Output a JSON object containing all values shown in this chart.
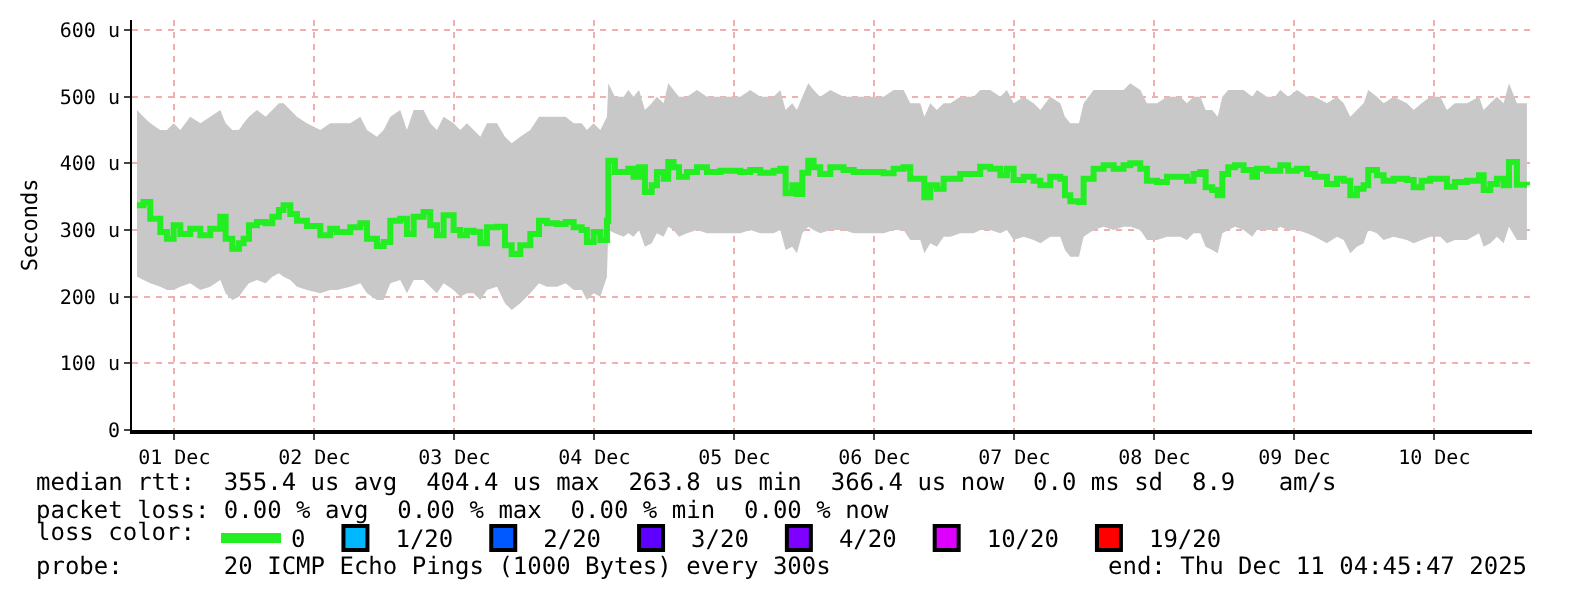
{
  "chart_data": {
    "type": "step",
    "ylabel": "Seconds",
    "xlim": [
      "2025-12-01T04:45",
      "2025-12-11T04:45"
    ],
    "xticks": [
      {
        "value": "2025-12-01T12:00",
        "label": "01 Dec"
      },
      {
        "value": "2025-12-02T12:00",
        "label": "02 Dec"
      },
      {
        "value": "2025-12-03T12:00",
        "label": "03 Dec"
      },
      {
        "value": "2025-12-04T12:00",
        "label": "04 Dec"
      },
      {
        "value": "2025-12-05T12:00",
        "label": "05 Dec"
      },
      {
        "value": "2025-12-06T12:00",
        "label": "06 Dec"
      },
      {
        "value": "2025-12-07T12:00",
        "label": "07 Dec"
      },
      {
        "value": "2025-12-08T12:00",
        "label": "08 Dec"
      },
      {
        "value": "2025-12-09T12:00",
        "label": "09 Dec"
      },
      {
        "value": "2025-12-10T12:00",
        "label": "10 Dec"
      }
    ],
    "ylim": [
      0,
      615
    ],
    "yticks": [
      0,
      {
        "value": 100,
        "label": "100 u"
      },
      {
        "value": 200,
        "label": "200 u"
      },
      {
        "value": 300,
        "label": "300 u"
      },
      {
        "value": 400,
        "label": "400 u"
      },
      {
        "value": 500,
        "label": "500 u"
      },
      {
        "value": 600,
        "label": "600 u"
      }
    ],
    "grid": true,
    "legend": "bottom",
    "legend_title": "loss color:",
    "marker": "none",
    "line_style": "solid",
    "x": [
      "2025-12-01T05:36",
      "2025-12-01T06:44",
      "2025-12-01T07:53",
      "2025-12-01T09:36",
      "2025-12-01T10:44",
      "2025-12-01T11:53",
      "2025-12-01T13:02",
      "2025-12-01T14:44",
      "2025-12-01T16:28",
      "2025-12-01T18:10",
      "2025-12-01T19:53",
      "2025-12-01T20:48",
      "2025-12-01T21:56",
      "2025-12-01T23:05",
      "2025-12-01T23:53",
      "2025-12-02T00:48",
      "2025-12-02T02:10",
      "2025-12-02T03:40",
      "2025-12-02T04:48",
      "2025-12-02T05:56",
      "2025-12-02T06:44",
      "2025-12-02T07:53",
      "2025-12-02T09:02",
      "2025-12-02T10:44",
      "2025-12-02T13:02",
      "2025-12-02T14:44",
      "2025-12-02T15:53",
      "2025-12-02T18:10",
      "2025-12-02T19:53",
      "2025-12-02T21:02",
      "2025-12-02T22:44",
      "2025-12-02T23:53",
      "2025-12-03T01:02",
      "2025-12-03T02:44",
      "2025-12-03T03:53",
      "2025-12-03T05:02",
      "2025-12-03T06:44",
      "2025-12-03T07:53",
      "2025-12-03T09:02",
      "2025-12-03T10:10",
      "2025-12-03T11:53",
      "2025-12-03T13:02",
      "2025-12-03T14:10",
      "2025-12-03T15:19",
      "2025-12-03T16:28",
      "2025-12-03T17:36",
      "2025-12-03T19:19",
      "2025-12-03T20:41",
      "2025-12-03T21:50",
      "2025-12-03T23:19",
      "2025-12-04T01:02",
      "2025-12-04T02:31",
      "2025-12-04T03:53",
      "2025-12-04T05:36",
      "2025-12-04T07:05",
      "2025-12-04T08:28",
      "2025-12-04T09:50",
      "2025-12-04T10:44",
      "2025-12-04T11:53",
      "2025-12-04T13:02",
      "2025-12-04T14:10",
      "2025-12-04T14:24",
      "2025-12-04T15:32",
      "2025-12-04T17:02",
      "2025-12-04T17:50",
      "2025-12-04T18:44",
      "2025-12-04T19:40",
      "2025-12-04T20:41",
      "2025-12-04T21:50",
      "2025-12-04T22:44",
      "2025-12-04T23:53",
      "2025-12-05T00:41",
      "2025-12-05T01:36",
      "2025-12-05T02:31",
      "2025-12-05T03:53",
      "2025-12-05T05:36",
      "2025-12-05T07:19",
      "2025-12-05T09:36",
      "2025-12-05T13:02",
      "2025-12-05T14:44",
      "2025-12-05T16:28",
      "2025-12-05T18:44",
      "2025-12-05T19:53",
      "2025-12-05T20:48",
      "2025-12-05T21:56",
      "2025-12-05T22:44",
      "2025-12-05T23:40",
      "2025-12-06T00:41",
      "2025-12-06T01:36",
      "2025-12-06T02:44",
      "2025-12-06T04:28",
      "2025-12-06T06:44",
      "2025-12-06T08:28",
      "2025-12-06T10:44",
      "2025-12-06T13:36",
      "2025-12-06T15:19",
      "2025-12-06T17:02",
      "2025-12-06T18:10",
      "2025-12-06T19:53",
      "2025-12-06T20:35",
      "2025-12-06T21:36",
      "2025-12-06T22:44",
      "2025-12-06T23:53",
      "2025-12-07T01:02",
      "2025-12-07T02:44",
      "2025-12-07T05:02",
      "2025-12-07T06:10",
      "2025-12-07T07:53",
      "2025-12-07T09:36",
      "2025-12-07T10:44",
      "2025-12-07T11:53",
      "2025-12-07T13:36",
      "2025-12-07T15:19",
      "2025-12-07T16:28",
      "2025-12-07T18:10",
      "2025-12-07T19:53",
      "2025-12-07T20:41",
      "2025-12-07T21:36",
      "2025-12-07T23:05",
      "2025-12-07T23:53",
      "2025-12-08T01:36",
      "2025-12-08T03:19",
      "2025-12-08T05:02",
      "2025-12-08T06:44",
      "2025-12-08T07:53",
      "2025-12-08T09:36",
      "2025-12-08T10:44",
      "2025-12-08T12:28",
      "2025-12-08T14:10",
      "2025-12-08T16:28",
      "2025-12-08T17:36",
      "2025-12-08T18:44",
      "2025-12-08T19:53",
      "2025-12-08T20:48",
      "2025-12-08T21:56",
      "2025-12-08T22:52",
      "2025-12-08T23:40",
      "2025-12-09T00:41",
      "2025-12-09T01:50",
      "2025-12-09T03:19",
      "2025-12-09T04:48",
      "2025-12-09T05:36",
      "2025-12-09T07:19",
      "2025-12-09T08:41",
      "2025-12-09T09:36",
      "2025-12-09T10:58",
      "2025-12-09T12:28",
      "2025-12-09T14:10",
      "2025-12-09T15:32",
      "2025-12-09T17:36",
      "2025-12-09T19:19",
      "2025-12-09T20:28",
      "2025-12-09T21:36",
      "2025-12-09T22:44",
      "2025-12-09T23:53",
      "2025-12-10T00:41",
      "2025-12-10T02:10",
      "2025-12-10T03:19",
      "2025-12-10T05:02",
      "2025-12-10T07:19",
      "2025-12-10T08:28",
      "2025-12-10T09:50",
      "2025-12-10T11:19",
      "2025-12-10T13:02",
      "2025-12-10T14:10",
      "2025-12-10T15:32",
      "2025-12-10T17:36",
      "2025-12-10T19:40",
      "2025-12-10T20:28",
      "2025-12-10T21:36",
      "2025-12-10T22:44",
      "2025-12-10T23:53",
      "2025-12-11T00:48",
      "2025-12-11T02:10",
      "2025-12-11T03:53"
    ],
    "series": [
      {
        "name": "0",
        "color": "#22ee22",
        "values": [
          337,
          342,
          317,
          297,
          287,
          307,
          294,
          302,
          292,
          302,
          320,
          287,
          272,
          280,
          287,
          307,
          312,
          310,
          320,
          330,
          337,
          324,
          314,
          306,
          292,
          302,
          297,
          304,
          310,
          287,
          276,
          282,
          314,
          317,
          294,
          320,
          327,
          307,
          292,
          322,
          300,
          292,
          299,
          297,
          280,
          304,
          305,
          277,
          264,
          277,
          294,
          314,
          310,
          309,
          312,
          304,
          300,
          282,
          297,
          285,
          314,
          404,
          387,
          387,
          392,
          380,
          394,
          357,
          367,
          387,
          377,
          402,
          394,
          380,
          387,
          394,
          387,
          389,
          387,
          390,
          386,
          389,
          392,
          355,
          367,
          354,
          386,
          404,
          394,
          384,
          394,
          390,
          387,
          387,
          385,
          392,
          394,
          377,
          377,
          349,
          367,
          362,
          377,
          377,
          384,
          384,
          395,
          392,
          382,
          392,
          375,
          380,
          374,
          367,
          380,
          377,
          352,
          343,
          342,
          377,
          392,
          397,
          392,
          397,
          400,
          392,
          374,
          372,
          380,
          380,
          374,
          384,
          387,
          364,
          360,
          352,
          384,
          394,
          397,
          390,
          380,
          392,
          389,
          389,
          397,
          389,
          392,
          384,
          380,
          369,
          377,
          374,
          352,
          362,
          367,
          390,
          382,
          374,
          377,
          375,
          364,
          374,
          377,
          377,
          365,
          372,
          374,
          382,
          360,
          369,
          377,
          367,
          402,
          368,
          367
        ],
        "lower": [
          230,
          225,
          220,
          215,
          210,
          210,
          215,
          220,
          210,
          215,
          225,
          205,
          195,
          200,
          210,
          220,
          225,
          220,
          230,
          235,
          230,
          225,
          215,
          210,
          205,
          210,
          210,
          215,
          220,
          205,
          195,
          195,
          220,
          225,
          205,
          225,
          225,
          215,
          205,
          220,
          210,
          200,
          205,
          205,
          195,
          210,
          215,
          190,
          180,
          190,
          205,
          220,
          215,
          215,
          220,
          210,
          210,
          195,
          205,
          200,
          230,
          300,
          295,
          290,
          295,
          290,
          300,
          275,
          280,
          295,
          290,
          305,
          300,
          290,
          295,
          300,
          295,
          295,
          295,
          300,
          295,
          295,
          300,
          270,
          275,
          265,
          295,
          305,
          300,
          295,
          300,
          300,
          295,
          295,
          295,
          300,
          300,
          285,
          285,
          265,
          280,
          275,
          290,
          290,
          295,
          295,
          300,
          300,
          295,
          300,
          285,
          290,
          285,
          280,
          290,
          290,
          270,
          260,
          260,
          290,
          300,
          305,
          300,
          305,
          305,
          300,
          285,
          285,
          290,
          290,
          285,
          295,
          295,
          275,
          270,
          265,
          295,
          300,
          305,
          300,
          290,
          300,
          300,
          300,
          305,
          300,
          300,
          295,
          290,
          280,
          290,
          285,
          265,
          275,
          280,
          300,
          295,
          285,
          290,
          285,
          280,
          285,
          290,
          290,
          280,
          285,
          285,
          295,
          275,
          280,
          290,
          280,
          305,
          285,
          285
        ],
        "upper": [
          480,
          470,
          460,
          450,
          450,
          460,
          450,
          470,
          460,
          470,
          480,
          460,
          450,
          450,
          460,
          470,
          480,
          470,
          480,
          490,
          490,
          480,
          470,
          460,
          450,
          460,
          460,
          460,
          470,
          450,
          440,
          450,
          470,
          480,
          450,
          480,
          480,
          460,
          450,
          470,
          460,
          450,
          460,
          450,
          440,
          460,
          460,
          440,
          430,
          440,
          450,
          470,
          470,
          470,
          470,
          460,
          460,
          450,
          460,
          450,
          470,
          520,
          500,
          500,
          510,
          500,
          510,
          480,
          490,
          500,
          490,
          520,
          510,
          500,
          500,
          510,
          500,
          500,
          500,
          510,
          500,
          500,
          510,
          480,
          490,
          480,
          500,
          520,
          510,
          500,
          510,
          500,
          500,
          500,
          500,
          510,
          510,
          490,
          490,
          470,
          490,
          480,
          490,
          490,
          500,
          500,
          510,
          510,
          500,
          510,
          490,
          500,
          490,
          480,
          500,
          490,
          470,
          460,
          460,
          490,
          510,
          510,
          510,
          510,
          520,
          510,
          490,
          490,
          500,
          500,
          490,
          500,
          500,
          480,
          480,
          470,
          500,
          510,
          510,
          510,
          500,
          510,
          500,
          500,
          510,
          500,
          510,
          500,
          500,
          490,
          500,
          490,
          470,
          480,
          490,
          510,
          500,
          490,
          500,
          490,
          480,
          490,
          500,
          500,
          480,
          490,
          490,
          500,
          480,
          490,
          500,
          490,
          520,
          490,
          490
        ]
      },
      {
        "name": "1/20",
        "color": "#00b8ff",
        "values": [
          null,
          null,
          null,
          null,
          null,
          null,
          null,
          null,
          null,
          null,
          null,
          null,
          null,
          null,
          null,
          null,
          null,
          null,
          null,
          null,
          null,
          null,
          null,
          null,
          null,
          null,
          null,
          null,
          null,
          null,
          null,
          null,
          null,
          null,
          null,
          null,
          null,
          null,
          null,
          null,
          null,
          null,
          null,
          null,
          null,
          null,
          null,
          null,
          null,
          null,
          null,
          null,
          null,
          null,
          null,
          null,
          null,
          null,
          null,
          null,
          null,
          null,
          null,
          null,
          null,
          null,
          null,
          null,
          null,
          null,
          null,
          null,
          null,
          null,
          null,
          null,
          null,
          null,
          null,
          null,
          null,
          null,
          null,
          null,
          null,
          null,
          null,
          null,
          null,
          null,
          null,
          null,
          null,
          null,
          null,
          null,
          null,
          null,
          null,
          null,
          null,
          null,
          null,
          null,
          null,
          null,
          null,
          null,
          null,
          null,
          null,
          null,
          null,
          null,
          null,
          null,
          null,
          null,
          null,
          null,
          null,
          null,
          null,
          null,
          null,
          null,
          null,
          null,
          null,
          null,
          null,
          null,
          null,
          null,
          null,
          null,
          null,
          null,
          null,
          null,
          null,
          null,
          null,
          null,
          null,
          null,
          null,
          null,
          null,
          null,
          null,
          null,
          null,
          null,
          null,
          null,
          null,
          null,
          null,
          null,
          null,
          null,
          null,
          null,
          null,
          null,
          null,
          null,
          null,
          null,
          null,
          null,
          null,
          null,
          null
        ]
      },
      {
        "name": "2/20",
        "color": "#0059ff",
        "values": [
          null,
          null,
          null,
          null,
          null,
          null,
          null,
          null,
          null,
          null,
          null,
          null,
          null,
          null,
          null,
          null,
          null,
          null,
          null,
          null,
          null,
          null,
          null,
          null,
          null,
          null,
          null,
          null,
          null,
          null,
          null,
          null,
          null,
          null,
          null,
          null,
          null,
          null,
          null,
          null,
          null,
          null,
          null,
          null,
          null,
          null,
          null,
          null,
          null,
          null,
          null,
          null,
          null,
          null,
          null,
          null,
          null,
          null,
          null,
          null,
          null,
          null,
          null,
          null,
          null,
          null,
          null,
          null,
          null,
          null,
          null,
          null,
          null,
          null,
          null,
          null,
          null,
          null,
          null,
          null,
          null,
          null,
          null,
          null,
          null,
          null,
          null,
          null,
          null,
          null,
          null,
          null,
          null,
          null,
          null,
          null,
          null,
          null,
          null,
          null,
          null,
          null,
          null,
          null,
          null,
          null,
          null,
          null,
          null,
          null,
          null,
          null,
          null,
          null,
          null,
          null,
          null,
          null,
          null,
          null,
          null,
          null,
          null,
          null,
          null,
          null,
          null,
          null,
          null,
          null,
          null,
          null,
          null,
          null,
          null,
          null,
          null,
          null,
          null,
          null,
          null,
          null,
          null,
          null,
          null,
          null,
          null,
          null,
          null,
          null,
          null,
          null,
          null,
          null,
          null,
          null,
          null,
          null,
          null,
          null,
          null,
          null,
          null,
          null,
          null,
          null,
          null,
          null,
          null,
          null,
          null,
          null,
          null,
          null,
          null
        ]
      },
      {
        "name": "3/20",
        "color": "#5e00ff",
        "values": [
          null,
          null,
          null,
          null,
          null,
          null,
          null,
          null,
          null,
          null,
          null,
          null,
          null,
          null,
          null,
          null,
          null,
          null,
          null,
          null,
          null,
          null,
          null,
          null,
          null,
          null,
          null,
          null,
          null,
          null,
          null,
          null,
          null,
          null,
          null,
          null,
          null,
          null,
          null,
          null,
          null,
          null,
          null,
          null,
          null,
          null,
          null,
          null,
          null,
          null,
          null,
          null,
          null,
          null,
          null,
          null,
          null,
          null,
          null,
          null,
          null,
          null,
          null,
          null,
          null,
          null,
          null,
          null,
          null,
          null,
          null,
          null,
          null,
          null,
          null,
          null,
          null,
          null,
          null,
          null,
          null,
          null,
          null,
          null,
          null,
          null,
          null,
          null,
          null,
          null,
          null,
          null,
          null,
          null,
          null,
          null,
          null,
          null,
          null,
          null,
          null,
          null,
          null,
          null,
          null,
          null,
          null,
          null,
          null,
          null,
          null,
          null,
          null,
          null,
          null,
          null,
          null,
          null,
          null,
          null,
          null,
          null,
          null,
          null,
          null,
          null,
          null,
          null,
          null,
          null,
          null,
          null,
          null,
          null,
          null,
          null,
          null,
          null,
          null,
          null,
          null,
          null,
          null,
          null,
          null,
          null,
          null,
          null,
          null,
          null,
          null,
          null,
          null,
          null,
          null,
          null,
          null,
          null,
          null,
          null,
          null,
          null,
          null,
          null,
          null,
          null,
          null,
          null,
          null,
          null,
          null,
          null,
          null,
          null,
          null
        ]
      },
      {
        "name": "4/20",
        "color": "#7e00ff",
        "values": [
          null,
          null,
          null,
          null,
          null,
          null,
          null,
          null,
          null,
          null,
          null,
          null,
          null,
          null,
          null,
          null,
          null,
          null,
          null,
          null,
          null,
          null,
          null,
          null,
          null,
          null,
          null,
          null,
          null,
          null,
          null,
          null,
          null,
          null,
          null,
          null,
          null,
          null,
          null,
          null,
          null,
          null,
          null,
          null,
          null,
          null,
          null,
          null,
          null,
          null,
          null,
          null,
          null,
          null,
          null,
          null,
          null,
          null,
          null,
          null,
          null,
          null,
          null,
          null,
          null,
          null,
          null,
          null,
          null,
          null,
          null,
          null,
          null,
          null,
          null,
          null,
          null,
          null,
          null,
          null,
          null,
          null,
          null,
          null,
          null,
          null,
          null,
          null,
          null,
          null,
          null,
          null,
          null,
          null,
          null,
          null,
          null,
          null,
          null,
          null,
          null,
          null,
          null,
          null,
          null,
          null,
          null,
          null,
          null,
          null,
          null,
          null,
          null,
          null,
          null,
          null,
          null,
          null,
          null,
          null,
          null,
          null,
          null,
          null,
          null,
          null,
          null,
          null,
          null,
          null,
          null,
          null,
          null,
          null,
          null,
          null,
          null,
          null,
          null,
          null,
          null,
          null,
          null,
          null,
          null,
          null,
          null,
          null,
          null,
          null,
          null,
          null,
          null,
          null,
          null,
          null,
          null,
          null,
          null,
          null,
          null,
          null,
          null,
          null,
          null,
          null,
          null,
          null,
          null,
          null,
          null,
          null,
          null,
          null,
          null
        ]
      },
      {
        "name": "10/20",
        "color": "#dd00ff",
        "values": [
          null,
          null,
          null,
          null,
          null,
          null,
          null,
          null,
          null,
          null,
          null,
          null,
          null,
          null,
          null,
          null,
          null,
          null,
          null,
          null,
          null,
          null,
          null,
          null,
          null,
          null,
          null,
          null,
          null,
          null,
          null,
          null,
          null,
          null,
          null,
          null,
          null,
          null,
          null,
          null,
          null,
          null,
          null,
          null,
          null,
          null,
          null,
          null,
          null,
          null,
          null,
          null,
          null,
          null,
          null,
          null,
          null,
          null,
          null,
          null,
          null,
          null,
          null,
          null,
          null,
          null,
          null,
          null,
          null,
          null,
          null,
          null,
          null,
          null,
          null,
          null,
          null,
          null,
          null,
          null,
          null,
          null,
          null,
          null,
          null,
          null,
          null,
          null,
          null,
          null,
          null,
          null,
          null,
          null,
          null,
          null,
          null,
          null,
          null,
          null,
          null,
          null,
          null,
          null,
          null,
          null,
          null,
          null,
          null,
          null,
          null,
          null,
          null,
          null,
          null,
          null,
          null,
          null,
          null,
          null,
          null,
          null,
          null,
          null,
          null,
          null,
          null,
          null,
          null,
          null,
          null,
          null,
          null,
          null,
          null,
          null,
          null,
          null,
          null,
          null,
          null,
          null,
          null,
          null,
          null,
          null,
          null,
          null,
          null,
          null,
          null,
          null,
          null,
          null,
          null,
          null,
          null,
          null,
          null,
          null,
          null,
          null,
          null,
          null,
          null,
          null,
          null,
          null,
          null,
          null,
          null,
          null,
          null,
          null,
          null
        ]
      },
      {
        "name": "19/20",
        "color": "#ff0000",
        "values": [
          null,
          null,
          null,
          null,
          null,
          null,
          null,
          null,
          null,
          null,
          null,
          null,
          null,
          null,
          null,
          null,
          null,
          null,
          null,
          null,
          null,
          null,
          null,
          null,
          null,
          null,
          null,
          null,
          null,
          null,
          null,
          null,
          null,
          null,
          null,
          null,
          null,
          null,
          null,
          null,
          null,
          null,
          null,
          null,
          null,
          null,
          null,
          null,
          null,
          null,
          null,
          null,
          null,
          null,
          null,
          null,
          null,
          null,
          null,
          null,
          null,
          null,
          null,
          null,
          null,
          null,
          null,
          null,
          null,
          null,
          null,
          null,
          null,
          null,
          null,
          null,
          null,
          null,
          null,
          null,
          null,
          null,
          null,
          null,
          null,
          null,
          null,
          null,
          null,
          null,
          null,
          null,
          null,
          null,
          null,
          null,
          null,
          null,
          null,
          null,
          null,
          null,
          null,
          null,
          null,
          null,
          null,
          null,
          null,
          null,
          null,
          null,
          null,
          null,
          null,
          null,
          null,
          null,
          null,
          null,
          null,
          null,
          null,
          null,
          null,
          null,
          null,
          null,
          null,
          null,
          null,
          null,
          null,
          null,
          null,
          null,
          null,
          null,
          null,
          null,
          null,
          null,
          null,
          null,
          null,
          null,
          null,
          null,
          null,
          null,
          null,
          null,
          null,
          null,
          null,
          null,
          null,
          null,
          null,
          null,
          null,
          null,
          null,
          null,
          null,
          null,
          null,
          null,
          null,
          null,
          null,
          null,
          null,
          null,
          null
        ]
      }
    ],
    "annotations": [
      "median rtt:  355.4 us avg  404.4 us max  263.8 us min  366.4 us now  0.0 ms sd  8.9   am/s",
      "packet loss: 0.00 % avg  0.00 % max  0.00 % min  0.00 % now",
      "probe:       20 ICMP Echo Pings (1000 Bytes) every 300s",
      "end: Thu Dec 11 04:45:47 2025"
    ]
  }
}
